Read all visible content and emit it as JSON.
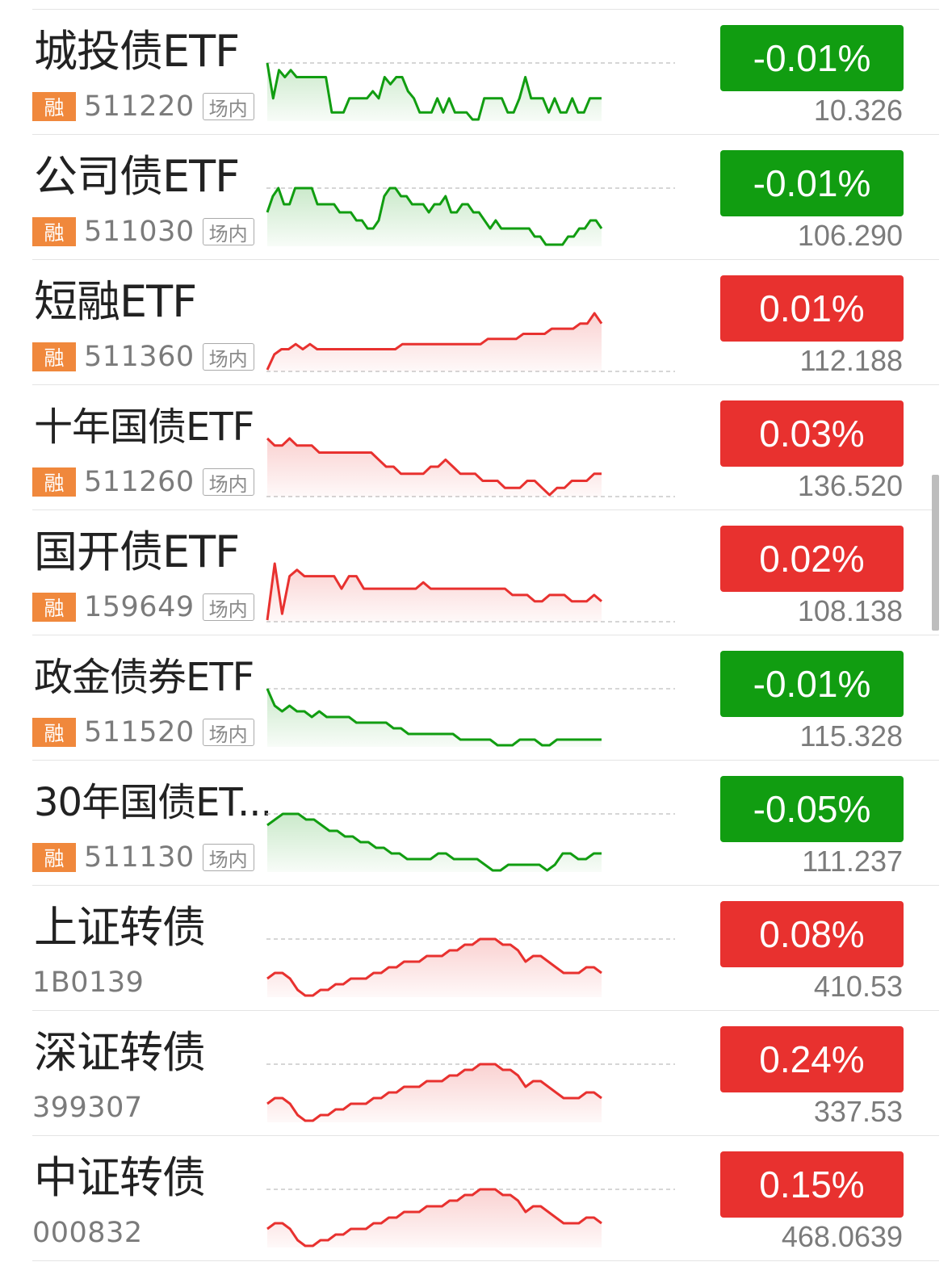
{
  "colors": {
    "up": "#e8312f",
    "down": "#119d11",
    "rong_badge": "#f0883c"
  },
  "market_label": "场内",
  "rong_label": "融",
  "items": [
    {
      "name": "城投债ETF",
      "code": "511220",
      "rong": true,
      "market": true,
      "change": "-0.01%",
      "price": "10.326",
      "direction": "down",
      "series": [
        9,
        4,
        8,
        7,
        8,
        7,
        7,
        7,
        7,
        7,
        7,
        2,
        2,
        2,
        4,
        4,
        4,
        4,
        5,
        4,
        7,
        6,
        7,
        7,
        5,
        4,
        2,
        2,
        2,
        4,
        2,
        4,
        2,
        2,
        2,
        1,
        1,
        4,
        4,
        4,
        4,
        2,
        2,
        4,
        7,
        4,
        4,
        4,
        2,
        4,
        2,
        2,
        4,
        2,
        2,
        4,
        4,
        4
      ]
    },
    {
      "name": "公司债ETF",
      "code": "511030",
      "rong": true,
      "market": true,
      "change": "-0.01%",
      "price": "106.290",
      "direction": "down",
      "series": [
        5,
        7,
        8,
        6,
        6,
        8,
        8,
        8,
        8,
        6,
        6,
        6,
        6,
        5,
        5,
        5,
        4,
        4,
        3,
        3,
        4,
        7,
        8,
        8,
        7,
        7,
        6,
        6,
        6,
        5,
        6,
        6,
        7,
        5,
        5,
        6,
        6,
        5,
        5,
        4,
        3,
        4,
        3,
        3,
        3,
        3,
        3,
        3,
        2,
        2,
        1,
        1,
        1,
        1,
        2,
        2,
        3,
        3,
        4,
        4,
        3
      ]
    },
    {
      "name": "短融ETF",
      "code": "511360",
      "rong": true,
      "market": true,
      "change": "0.01%",
      "price": "112.188",
      "direction": "up",
      "series": [
        1,
        4,
        5,
        5,
        6,
        5,
        6,
        5,
        5,
        5,
        5,
        5,
        5,
        5,
        5,
        5,
        5,
        5,
        5,
        6,
        6,
        6,
        6,
        6,
        6,
        6,
        6,
        6,
        6,
        6,
        6,
        7,
        7,
        7,
        7,
        7,
        8,
        8,
        8,
        8,
        9,
        9,
        9,
        9,
        10,
        10,
        12,
        10
      ]
    },
    {
      "name": "十年国债ETF",
      "code": "511260",
      "rong": true,
      "market": true,
      "change": "0.03%",
      "price": "136.520",
      "direction": "up",
      "series": [
        9,
        8,
        8,
        9,
        8,
        8,
        8,
        7,
        7,
        7,
        7,
        7,
        7,
        7,
        7,
        6,
        5,
        5,
        4,
        4,
        4,
        4,
        5,
        5,
        6,
        5,
        4,
        4,
        4,
        3,
        3,
        3,
        2,
        2,
        2,
        3,
        3,
        2,
        1,
        2,
        2,
        3,
        3,
        3,
        4,
        4
      ]
    },
    {
      "name": "国开债ETF",
      "code": "159649",
      "rong": true,
      "market": true,
      "change": "0.02%",
      "price": "108.138",
      "direction": "up",
      "series": [
        1,
        10,
        2,
        8,
        9,
        8,
        8,
        8,
        8,
        8,
        6,
        8,
        8,
        6,
        6,
        6,
        6,
        6,
        6,
        6,
        6,
        7,
        6,
        6,
        6,
        6,
        6,
        6,
        6,
        6,
        6,
        6,
        6,
        5,
        5,
        5,
        4,
        4,
        5,
        5,
        5,
        4,
        4,
        4,
        5,
        4
      ]
    },
    {
      "name": "政金债券ETF",
      "code": "511520",
      "rong": true,
      "market": true,
      "change": "-0.01%",
      "price": "115.328",
      "direction": "down",
      "series": [
        10,
        7,
        6,
        7,
        6,
        6,
        5,
        6,
        5,
        5,
        5,
        5,
        4,
        4,
        4,
        4,
        4,
        3,
        3,
        2,
        2,
        2,
        2,
        2,
        2,
        2,
        1,
        1,
        1,
        1,
        1,
        0,
        0,
        0,
        1,
        1,
        1,
        0,
        0,
        1,
        1,
        1,
        1,
        1,
        1,
        1
      ]
    },
    {
      "name": "30年国债ET...",
      "code": "511130",
      "rong": true,
      "market": true,
      "change": "-0.05%",
      "price": "111.237",
      "direction": "down",
      "series": [
        8,
        9,
        10,
        10,
        10,
        9,
        9,
        8,
        7,
        7,
        6,
        6,
        5,
        5,
        4,
        4,
        3,
        3,
        2,
        2,
        2,
        2,
        3,
        3,
        2,
        2,
        2,
        2,
        1,
        0,
        0,
        1,
        1,
        1,
        1,
        1,
        0,
        1,
        3,
        3,
        2,
        2,
        3,
        3
      ]
    },
    {
      "name": "上证转债",
      "code": "1B0139",
      "rong": false,
      "market": false,
      "change": "0.08%",
      "price": "410.53",
      "direction": "up",
      "series": [
        3,
        4,
        4,
        3,
        1,
        0,
        0,
        1,
        1,
        2,
        2,
        3,
        3,
        3,
        4,
        4,
        5,
        5,
        6,
        6,
        6,
        7,
        7,
        7,
        8,
        8,
        9,
        9,
        10,
        10,
        10,
        9,
        9,
        8,
        6,
        7,
        7,
        6,
        5,
        4,
        4,
        4,
        5,
        5,
        4
      ]
    },
    {
      "name": "深证转债",
      "code": "399307",
      "rong": false,
      "market": false,
      "change": "0.24%",
      "price": "337.53",
      "direction": "up",
      "series": [
        3,
        4,
        4,
        3,
        1,
        0,
        0,
        1,
        1,
        2,
        2,
        3,
        3,
        3,
        4,
        4,
        5,
        5,
        6,
        6,
        6,
        7,
        7,
        7,
        8,
        8,
        9,
        9,
        10,
        10,
        10,
        9,
        9,
        8,
        6,
        7,
        7,
        6,
        5,
        4,
        4,
        4,
        5,
        5,
        4
      ]
    },
    {
      "name": "中证转债",
      "code": "000832",
      "rong": false,
      "market": false,
      "change": "0.15%",
      "price": "468.0639",
      "direction": "up",
      "series": [
        3,
        4,
        4,
        3,
        1,
        0,
        0,
        1,
        1,
        2,
        2,
        3,
        3,
        3,
        4,
        4,
        5,
        5,
        6,
        6,
        6,
        7,
        7,
        7,
        8,
        8,
        9,
        9,
        10,
        10,
        10,
        9,
        9,
        8,
        6,
        7,
        7,
        6,
        5,
        4,
        4,
        4,
        5,
        5,
        4
      ]
    }
  ]
}
